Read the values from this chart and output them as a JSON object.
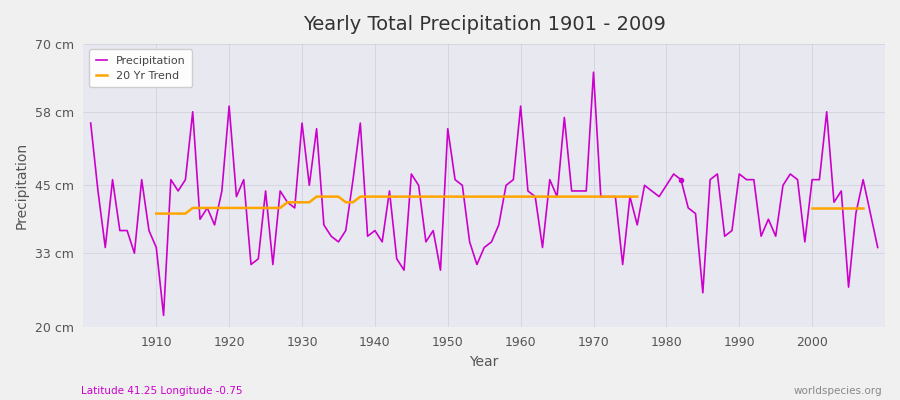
{
  "title": "Yearly Total Precipitation 1901 - 2009",
  "xlabel": "Year",
  "ylabel": "Precipitation",
  "subtitle_lat": "Latitude 41.25 Longitude -0.75",
  "watermark": "worldspecies.org",
  "ylim": [
    20,
    70
  ],
  "yticks": [
    20,
    33,
    45,
    58,
    70
  ],
  "ytick_labels": [
    "20 cm",
    "33 cm",
    "45 cm",
    "58 cm",
    "70 cm"
  ],
  "precip_color": "#CC00CC",
  "trend_color": "#FFA500",
  "plot_bg_color": "#E8E8F0",
  "fig_bg_color": "#F0F0F0",
  "legend_labels": [
    "Precipitation",
    "20 Yr Trend"
  ],
  "years": [
    1901,
    1902,
    1903,
    1904,
    1905,
    1906,
    1907,
    1908,
    1909,
    1910,
    1911,
    1912,
    1913,
    1914,
    1915,
    1916,
    1917,
    1918,
    1919,
    1920,
    1921,
    1922,
    1923,
    1924,
    1925,
    1926,
    1927,
    1928,
    1929,
    1930,
    1931,
    1932,
    1933,
    1934,
    1935,
    1936,
    1937,
    1938,
    1939,
    1940,
    1941,
    1942,
    1943,
    1944,
    1945,
    1946,
    1947,
    1948,
    1949,
    1950,
    1951,
    1952,
    1953,
    1954,
    1955,
    1956,
    1957,
    1958,
    1959,
    1960,
    1961,
    1962,
    1963,
    1964,
    1965,
    1966,
    1967,
    1968,
    1969,
    1970,
    1971,
    1972,
    1973,
    1974,
    1975,
    1976,
    1977,
    1978,
    1979,
    1980,
    1981,
    1982,
    1983,
    1984,
    1985,
    1986,
    1987,
    1988,
    1989,
    1990,
    1991,
    1992,
    1993,
    1994,
    1995,
    1996,
    1997,
    1998,
    1999,
    2000,
    2001,
    2002,
    2003,
    2004,
    2005,
    2006,
    2007,
    2008,
    2009
  ],
  "precip": [
    56,
    44,
    34,
    46,
    37,
    37,
    33,
    46,
    37,
    34,
    22,
    46,
    44,
    46,
    58,
    39,
    41,
    38,
    44,
    59,
    43,
    46,
    31,
    32,
    44,
    31,
    44,
    42,
    41,
    56,
    45,
    55,
    38,
    36,
    35,
    37,
    46,
    56,
    36,
    37,
    35,
    44,
    32,
    30,
    47,
    45,
    35,
    37,
    30,
    55,
    46,
    45,
    35,
    31,
    34,
    35,
    38,
    45,
    46,
    59,
    44,
    43,
    34,
    46,
    43,
    57,
    44,
    44,
    44,
    65,
    43,
    43,
    43,
    31,
    43,
    38,
    45,
    44,
    43,
    45,
    47,
    46,
    41,
    40,
    26,
    46,
    47,
    36,
    37,
    47,
    46,
    46,
    36,
    39,
    36,
    45,
    47,
    46,
    35,
    46,
    46,
    58,
    42,
    44,
    27,
    40,
    46,
    40,
    34
  ],
  "trend": [
    null,
    null,
    null,
    null,
    null,
    null,
    null,
    null,
    null,
    40,
    40,
    40,
    40,
    40,
    41,
    41,
    41,
    41,
    41,
    41,
    41,
    41,
    41,
    41,
    41,
    41,
    41,
    42,
    42,
    42,
    42,
    43,
    43,
    43,
    43,
    42,
    42,
    43,
    43,
    43,
    43,
    43,
    43,
    43,
    43,
    43,
    43,
    43,
    43,
    43,
    43,
    43,
    43,
    43,
    43,
    43,
    43,
    43,
    43,
    43,
    43,
    43,
    43,
    43,
    43,
    43,
    43,
    43,
    43,
    43,
    43,
    43,
    43,
    43,
    43,
    43,
    null,
    null,
    null,
    null,
    null,
    null,
    null,
    null,
    null,
    null,
    null,
    null,
    null,
    null,
    null,
    null,
    null,
    null,
    null,
    null,
    null,
    null,
    null,
    41,
    41,
    41,
    41,
    41,
    41,
    41,
    41,
    null,
    null
  ],
  "dot_year": 1982,
  "dot_val": 46,
  "xtick_vals": [
    1910,
    1920,
    1930,
    1940,
    1950,
    1960,
    1970,
    1980,
    1990,
    2000
  ]
}
